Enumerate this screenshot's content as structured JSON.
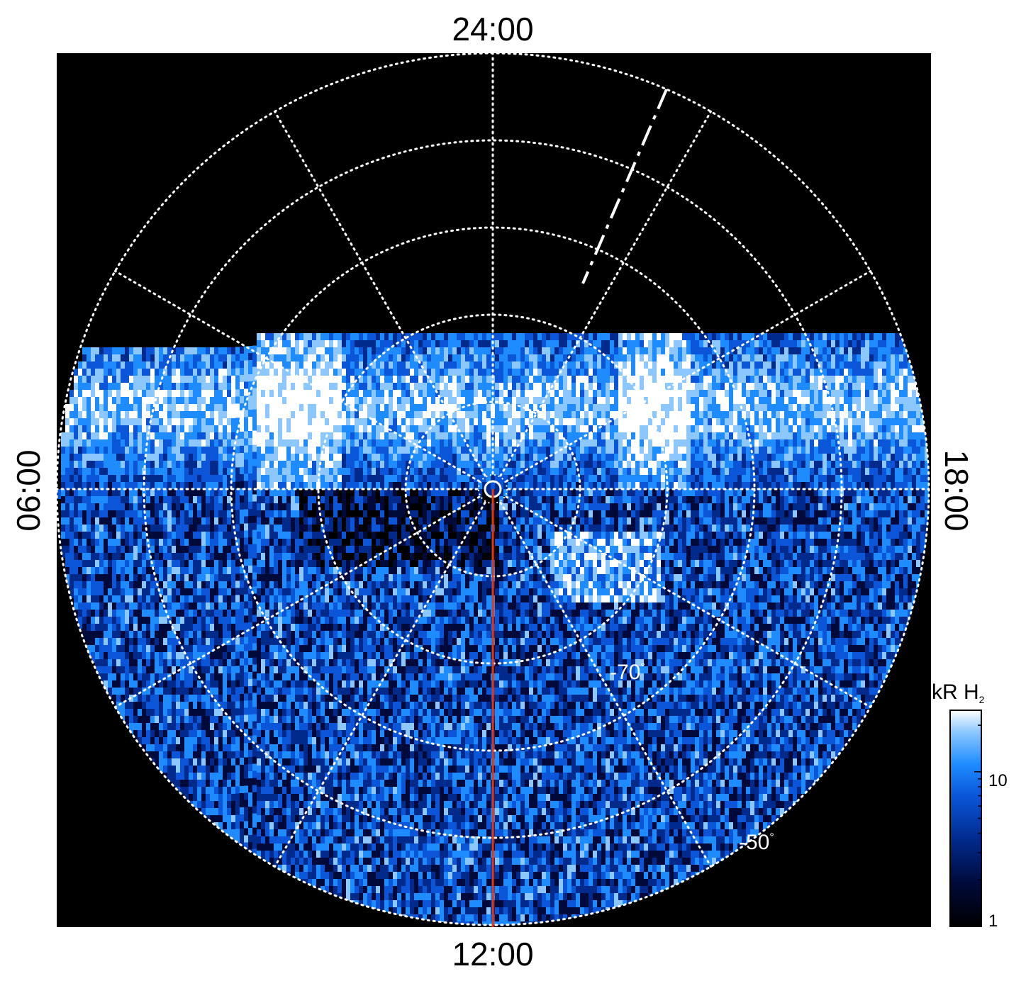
{
  "local_time_labels": {
    "top": "24:00",
    "bottom": "12:00",
    "left": "06:00",
    "right": "18:00"
  },
  "latitude_labels": [
    {
      "value": "-70",
      "degree": "°"
    },
    {
      "value": "-50",
      "degree": "°"
    }
  ],
  "colorbar": {
    "title": "kR H",
    "title_subscript": "2",
    "scale": "log",
    "tick_labels": [
      "10",
      "1"
    ],
    "colors": [
      "#000000",
      "#000a3a",
      "#002a8c",
      "#0a55d8",
      "#1e8cff",
      "#8cc8ff",
      "#ffffff"
    ]
  },
  "grid": {
    "latitude_circles_deg": [
      -90,
      -80,
      -70,
      -60,
      -50,
      -40
    ],
    "meridian_spacing_hours": 2,
    "style": "dotted white"
  },
  "colors": {
    "background": "#000000",
    "grid": "#ffffff",
    "noon_meridian": "#e8380e",
    "dash_line": "#ffffff"
  }
}
